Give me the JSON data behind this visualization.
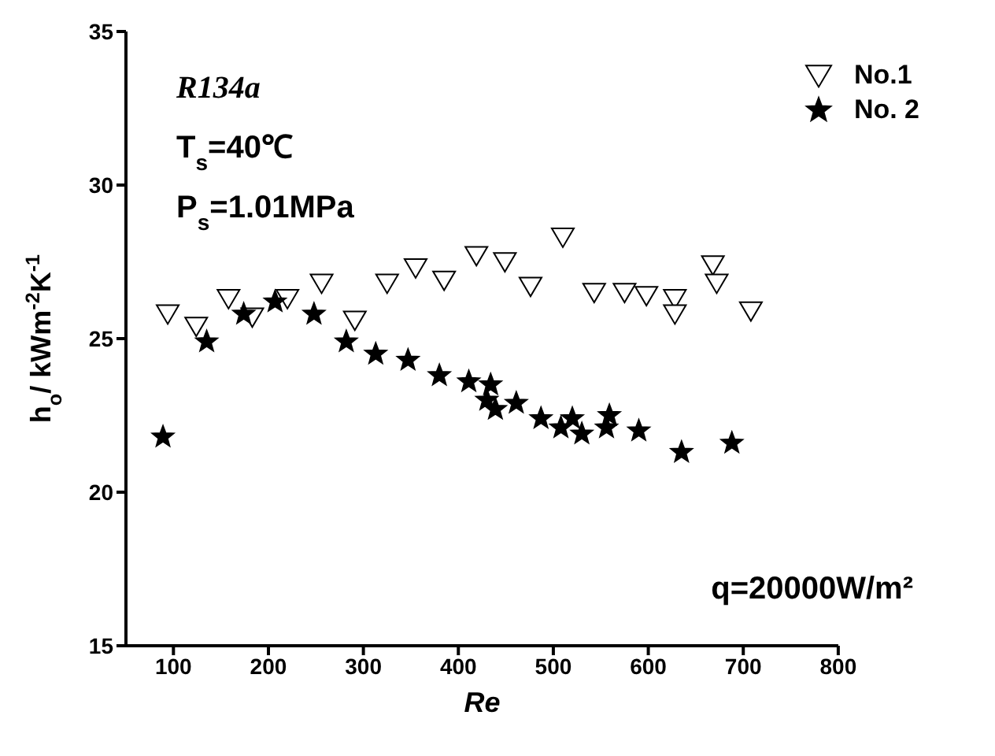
{
  "chart_data": {
    "type": "scatter",
    "xlabel": "Re",
    "ylabel": "h$_{o}$/ kWm$^{-2}$K$^{-1}$",
    "annotations": [
      "R134a",
      "T$_{s}$=40℃",
      "P$_{s}$=1.01MPa",
      "q=20000W/m²"
    ],
    "xlim": [
      50,
      800
    ],
    "xticks": [
      100,
      200,
      300,
      400,
      500,
      600,
      700,
      800
    ],
    "ylim": [
      15,
      35
    ],
    "yticks": [
      15,
      20,
      25,
      30,
      35
    ],
    "grid": false,
    "legend": "top right",
    "series": [
      {
        "name": "No.1",
        "color": "#000000",
        "marker": "triangle",
        "x": [
          94,
          124,
          158,
          183,
          220,
          256,
          291,
          325,
          355,
          385,
          419,
          449,
          476,
          510,
          543,
          575,
          598,
          628,
          628,
          668,
          672,
          708
        ],
        "values": [
          25.8,
          25.4,
          26.3,
          25.7,
          26.3,
          26.8,
          25.6,
          26.8,
          27.3,
          26.9,
          27.7,
          27.5,
          26.7,
          28.3,
          26.5,
          26.5,
          26.4,
          26.3,
          25.8,
          27.4,
          26.8,
          25.9
        ]
      },
      {
        "name": "No. 2",
        "color": "#000000",
        "marker": "star",
        "x": [
          89,
          135,
          174,
          207,
          248,
          282,
          313,
          347,
          380,
          411,
          434,
          430,
          439,
          461,
          487,
          508,
          520,
          530,
          559,
          556,
          590,
          635,
          688
        ],
        "values": [
          21.8,
          24.9,
          25.8,
          26.2,
          25.8,
          24.9,
          24.5,
          24.3,
          23.8,
          23.6,
          23.5,
          23.0,
          22.7,
          22.9,
          22.4,
          22.1,
          22.4,
          21.9,
          22.5,
          22.1,
          22.0,
          21.3,
          21.6
        ]
      }
    ]
  }
}
